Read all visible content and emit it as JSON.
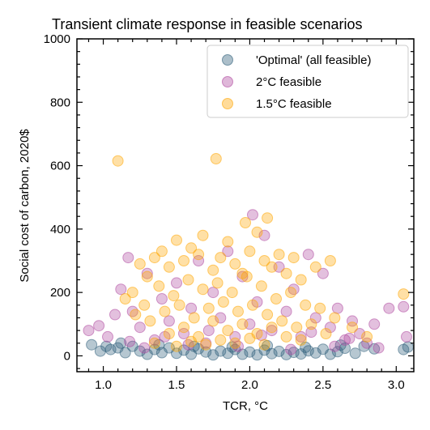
{
  "chart_data": {
    "type": "scatter",
    "title": "Transient climate response in feasible scenarios",
    "xlabel": "TCR, °C",
    "ylabel": "Social cost of carbon, 2020$",
    "xlim": [
      0.82,
      3.12
    ],
    "ylim": [
      -50,
      1000
    ],
    "x_ticks": [
      1.0,
      1.5,
      2.0,
      2.5,
      3.0
    ],
    "x_tick_labels": [
      "1.0",
      "1.5",
      "2.0",
      "2.5",
      "3.0"
    ],
    "y_ticks": [
      0,
      200,
      400,
      600,
      800,
      1000
    ],
    "y_tick_labels": [
      "0",
      "200",
      "400",
      "600",
      "800",
      "1000"
    ],
    "grid": false,
    "legend_position": "upper-right",
    "series": [
      {
        "name": "'Optimal' (all feasible)",
        "color": "#2f5f7a",
        "points": [
          [
            0.92,
            35
          ],
          [
            0.98,
            15
          ],
          [
            1.02,
            30
          ],
          [
            1.05,
            20
          ],
          [
            1.1,
            25
          ],
          [
            1.15,
            10
          ],
          [
            1.2,
            30
          ],
          [
            1.25,
            15
          ],
          [
            1.3,
            5
          ],
          [
            1.35,
            20
          ],
          [
            1.4,
            10
          ],
          [
            1.45,
            25
          ],
          [
            1.5,
            8
          ],
          [
            1.55,
            18
          ],
          [
            1.6,
            5
          ],
          [
            1.65,
            22
          ],
          [
            1.7,
            12
          ],
          [
            1.75,
            3
          ],
          [
            1.8,
            15
          ],
          [
            1.85,
            8
          ],
          [
            1.9,
            20
          ],
          [
            1.95,
            5
          ],
          [
            2.0,
            12
          ],
          [
            2.05,
            3
          ],
          [
            2.1,
            18
          ],
          [
            2.15,
            7
          ],
          [
            2.2,
            14
          ],
          [
            2.25,
            4
          ],
          [
            2.3,
            11
          ],
          [
            2.35,
            6
          ],
          [
            2.4,
            16
          ],
          [
            2.45,
            9
          ],
          [
            2.5,
            21
          ],
          [
            2.55,
            5
          ],
          [
            2.6,
            13
          ],
          [
            2.65,
            24
          ],
          [
            2.72,
            8
          ],
          [
            2.78,
            30
          ],
          [
            2.85,
            22
          ],
          [
            3.05,
            20
          ],
          [
            3.08,
            28
          ],
          [
            1.12,
            40
          ],
          [
            1.38,
            35
          ],
          [
            1.62,
            30
          ],
          [
            1.88,
            28
          ],
          [
            2.12,
            32
          ],
          [
            2.38,
            27
          ],
          [
            2.62,
            34
          ]
        ]
      },
      {
        "name": "2°C feasible",
        "color": "#b04aa0",
        "points": [
          [
            0.9,
            80
          ],
          [
            0.97,
            95
          ],
          [
            1.03,
            60
          ],
          [
            1.08,
            130
          ],
          [
            1.12,
            210
          ],
          [
            1.17,
            310
          ],
          [
            1.2,
            140
          ],
          [
            1.25,
            90
          ],
          [
            1.3,
            260
          ],
          [
            1.35,
            50
          ],
          [
            1.4,
            180
          ],
          [
            1.45,
            110
          ],
          [
            1.5,
            230
          ],
          [
            1.55,
            70
          ],
          [
            1.6,
            150
          ],
          [
            1.65,
            300
          ],
          [
            1.7,
            40
          ],
          [
            1.75,
            200
          ],
          [
            1.8,
            120
          ],
          [
            1.85,
            330
          ],
          [
            1.9,
            60
          ],
          [
            1.95,
            250
          ],
          [
            2.0,
            100
          ],
          [
            2.02,
            445
          ],
          [
            2.05,
            170
          ],
          [
            2.1,
            380
          ],
          [
            2.15,
            80
          ],
          [
            2.2,
            280
          ],
          [
            2.25,
            140
          ],
          [
            2.3,
            210
          ],
          [
            2.35,
            60
          ],
          [
            2.4,
            320
          ],
          [
            2.45,
            120
          ],
          [
            2.5,
            260
          ],
          [
            2.55,
            90
          ],
          [
            2.6,
            150
          ],
          [
            2.65,
            50
          ],
          [
            2.7,
            110
          ],
          [
            2.75,
            70
          ],
          [
            2.8,
            40
          ],
          [
            2.85,
            100
          ],
          [
            2.95,
            150
          ],
          [
            3.05,
            155
          ],
          [
            3.07,
            60
          ],
          [
            1.28,
            25
          ],
          [
            1.58,
            35
          ],
          [
            1.92,
            30
          ],
          [
            2.28,
            20
          ],
          [
            2.58,
            30
          ],
          [
            2.88,
            25
          ],
          [
            1.42,
            60
          ],
          [
            1.72,
            80
          ],
          [
            2.08,
            65
          ],
          [
            2.42,
            75
          ],
          [
            2.68,
            55
          ],
          [
            1.18,
            45
          ]
        ]
      },
      {
        "name": "1.5°C feasible",
        "color": "#ffa500",
        "points": [
          [
            1.1,
            615
          ],
          [
            1.77,
            622
          ],
          [
            1.97,
            420
          ],
          [
            2.12,
            435
          ],
          [
            1.68,
            380
          ],
          [
            1.85,
            360
          ],
          [
            2.05,
            390
          ],
          [
            1.5,
            365
          ],
          [
            1.4,
            330
          ],
          [
            1.6,
            340
          ],
          [
            1.25,
            290
          ],
          [
            1.3,
            250
          ],
          [
            1.35,
            310
          ],
          [
            1.45,
            280
          ],
          [
            1.55,
            300
          ],
          [
            1.65,
            320
          ],
          [
            1.75,
            270
          ],
          [
            1.8,
            310
          ],
          [
            1.9,
            290
          ],
          [
            1.95,
            260
          ],
          [
            2.0,
            330
          ],
          [
            2.1,
            300
          ],
          [
            2.15,
            280
          ],
          [
            2.2,
            320
          ],
          [
            2.25,
            260
          ],
          [
            2.3,
            310
          ],
          [
            2.35,
            240
          ],
          [
            2.45,
            280
          ],
          [
            2.55,
            300
          ],
          [
            1.2,
            200
          ],
          [
            1.15,
            180
          ],
          [
            1.28,
            160
          ],
          [
            1.38,
            220
          ],
          [
            1.48,
            190
          ],
          [
            1.58,
            240
          ],
          [
            1.68,
            210
          ],
          [
            1.78,
            230
          ],
          [
            1.88,
            200
          ],
          [
            1.98,
            250
          ],
          [
            2.08,
            220
          ],
          [
            2.18,
            180
          ],
          [
            2.28,
            200
          ],
          [
            2.38,
            160
          ],
          [
            2.48,
            150
          ],
          [
            2.58,
            120
          ],
          [
            2.7,
            90
          ],
          [
            2.8,
            60
          ],
          [
            3.05,
            195
          ],
          [
            1.22,
            130
          ],
          [
            1.32,
            110
          ],
          [
            1.42,
            140
          ],
          [
            1.52,
            160
          ],
          [
            1.62,
            120
          ],
          [
            1.72,
            150
          ],
          [
            1.82,
            170
          ],
          [
            1.92,
            140
          ],
          [
            2.02,
            160
          ],
          [
            2.12,
            130
          ],
          [
            2.22,
            110
          ],
          [
            2.32,
            90
          ],
          [
            2.42,
            100
          ],
          [
            2.52,
            70
          ],
          [
            1.45,
            70
          ],
          [
            1.55,
            90
          ],
          [
            1.65,
            60
          ],
          [
            1.75,
            110
          ],
          [
            1.85,
            80
          ],
          [
            1.95,
            100
          ],
          [
            2.05,
            70
          ],
          [
            2.15,
            90
          ],
          [
            2.25,
            60
          ],
          [
            2.35,
            50
          ],
          [
            1.35,
            40
          ],
          [
            1.5,
            30
          ],
          [
            1.6,
            45
          ],
          [
            1.7,
            35
          ],
          [
            1.8,
            50
          ],
          [
            1.9,
            40
          ],
          [
            2.0,
            55
          ],
          [
            2.1,
            35
          ]
        ]
      }
    ]
  }
}
